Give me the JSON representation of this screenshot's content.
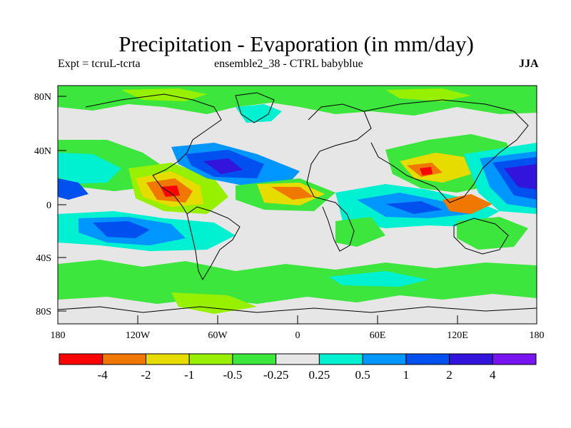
{
  "header": {
    "title": "Precipitation - Evaporation (in mm/day)",
    "expt": "Expt = tcruL-tcrta",
    "ensemble": "ensemble2_38 - CTRL babyblue",
    "season": "JJA"
  },
  "axes": {
    "lat_ticks": [
      "80N",
      "40N",
      "0",
      "40S",
      "80S"
    ],
    "lon_ticks": [
      "180",
      "120W",
      "60W",
      "0",
      "60E",
      "120E",
      "180"
    ]
  },
  "colorbar": {
    "colors": [
      "#ff0000",
      "#f07800",
      "#e6dc00",
      "#96f000",
      "#3ce63c",
      "#e6e6e6",
      "#00f0d2",
      "#0096ff",
      "#0050f0",
      "#3214dc",
      "#7814f0"
    ],
    "labels": [
      "-4",
      "-2",
      "-1",
      "-0.5",
      "-0.25",
      "0.25",
      "0.5",
      "1",
      "2",
      "4"
    ]
  }
}
